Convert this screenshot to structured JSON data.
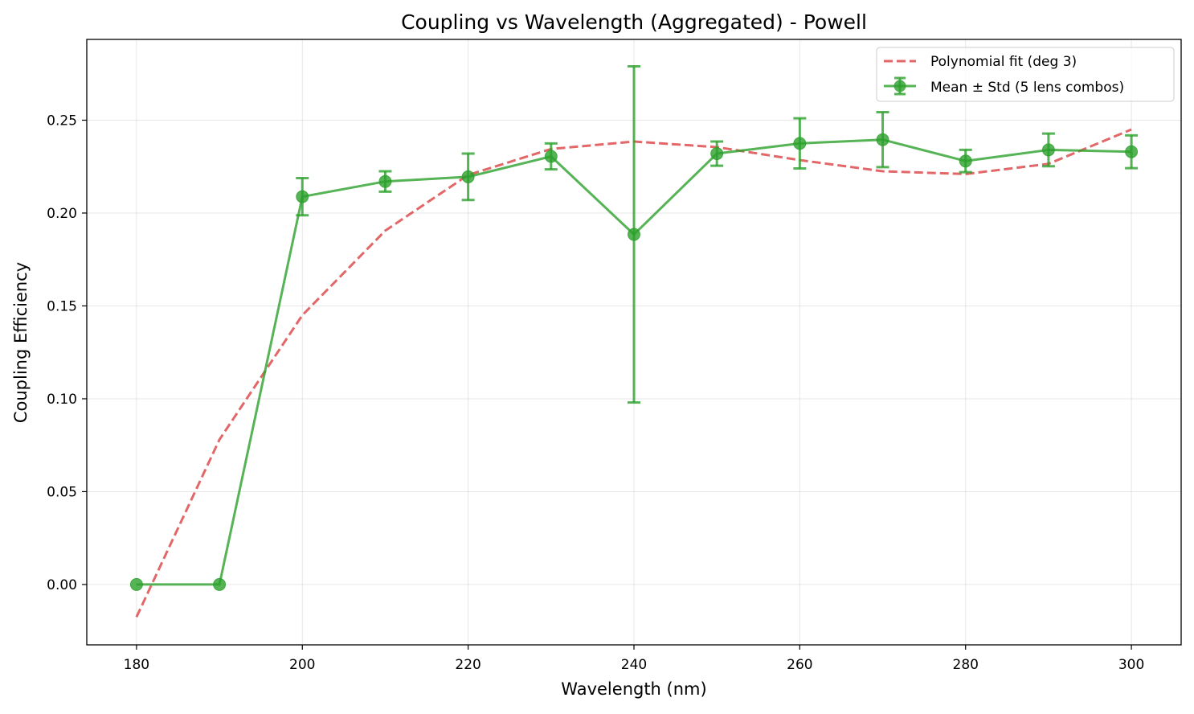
{
  "chart_data": {
    "type": "line",
    "title": "Coupling vs Wavelength (Aggregated) - Powell",
    "xlabel": "Wavelength (nm)",
    "ylabel": "Coupling Efficiency",
    "xlim": [
      174,
      306
    ],
    "ylim": [
      -0.0325,
      0.2935
    ],
    "xticks": [
      180,
      200,
      220,
      240,
      260,
      280,
      300
    ],
    "xtick_labels": [
      "180",
      "200",
      "220",
      "240",
      "260",
      "280",
      "300"
    ],
    "yticks": [
      0.0,
      0.05,
      0.1,
      0.15,
      0.2,
      0.25
    ],
    "ytick_labels": [
      "0.00",
      "0.05",
      "0.10",
      "0.15",
      "0.20",
      "0.25"
    ],
    "grid": true,
    "legend_position": "upper-right",
    "series": [
      {
        "name": "Mean ± Std (5 lens combos)",
        "kind": "line-errorbar",
        "color": "#2ca02c",
        "x": [
          180,
          190,
          200,
          210,
          220,
          230,
          240,
          250,
          260,
          270,
          280,
          290,
          300
        ],
        "y": [
          0.0,
          0.0,
          0.2088,
          0.217,
          0.2195,
          0.2305,
          0.1885,
          0.232,
          0.2375,
          0.2395,
          0.228,
          0.234,
          0.233
        ],
        "err": [
          0.0,
          0.0,
          0.01,
          0.0055,
          0.0125,
          0.007,
          0.0905,
          0.0065,
          0.0135,
          0.0148,
          0.006,
          0.0088,
          0.0088
        ]
      },
      {
        "name": "Polynomial fit (deg 3)",
        "kind": "dashed-line",
        "color": "#d62728",
        "x": [
          180,
          190,
          200,
          210,
          220,
          230,
          240,
          250,
          260,
          270,
          280,
          290,
          300
        ],
        "y": [
          -0.0175,
          0.078,
          0.145,
          0.1905,
          0.2205,
          0.2345,
          0.2385,
          0.2355,
          0.2285,
          0.2225,
          0.221,
          0.2265,
          0.245
        ]
      }
    ]
  }
}
